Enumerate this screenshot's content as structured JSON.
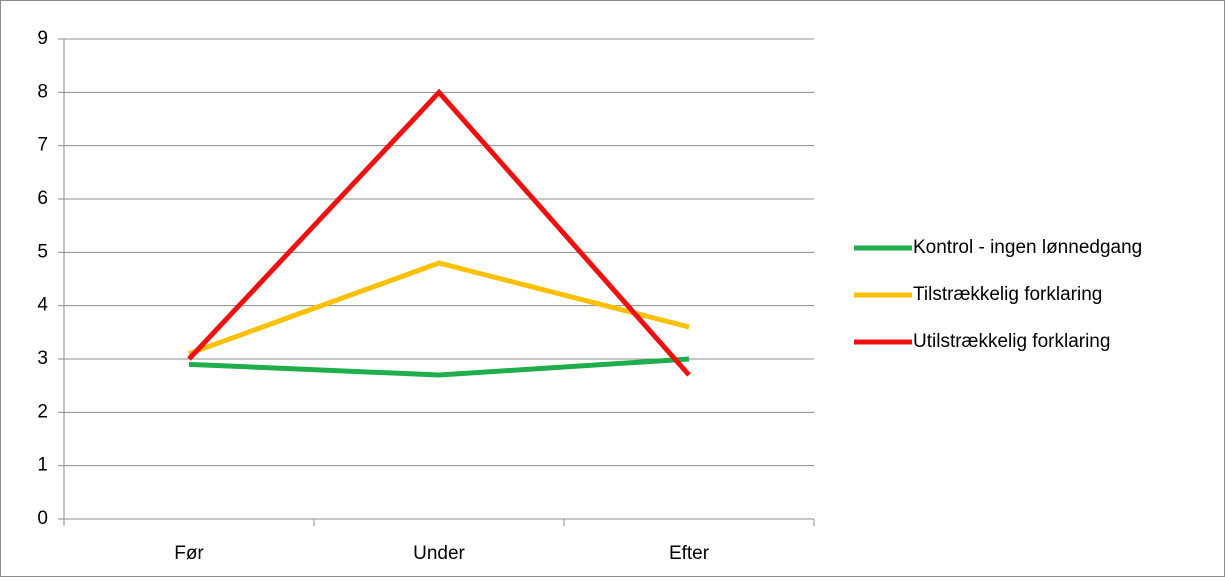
{
  "chart_data": {
    "type": "line",
    "title": "",
    "xlabel": "",
    "ylabel": "",
    "categories": [
      "Før",
      "Under",
      "Efter"
    ],
    "ylim": [
      0,
      9
    ],
    "yticks": [
      0,
      1,
      2,
      3,
      4,
      5,
      6,
      7,
      8,
      9
    ],
    "grid": true,
    "legend_position": "right",
    "series": [
      {
        "name": "Kontrol - ingen lønnedgang",
        "color": "#1fae4b",
        "values": [
          2.9,
          2.7,
          3.0
        ]
      },
      {
        "name": "Tilstrækkelig forklaring",
        "color": "#ffc000",
        "values": [
          3.1,
          4.8,
          3.6
        ]
      },
      {
        "name": "Utilstrækkelig forklaring",
        "color": "#ee1111",
        "values": [
          3.0,
          8.0,
          2.7
        ]
      }
    ]
  }
}
